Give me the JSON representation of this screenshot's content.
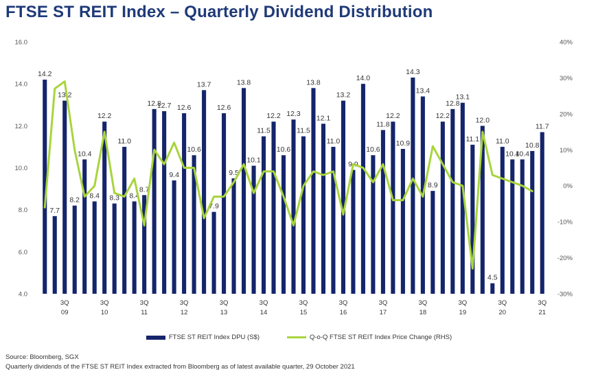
{
  "chart_data": {
    "type": "bar+line",
    "title": "FTSE ST REIT Index – Quarterly Dividend Distribution",
    "y_left": {
      "range": [
        4.0,
        16.0
      ],
      "ticks": [
        "4.0",
        "6.0",
        "8.0",
        "10.0",
        "12.0",
        "14.0",
        "16.0"
      ]
    },
    "y_right": {
      "range": [
        -30,
        40
      ],
      "ticks": [
        "-30%",
        "-20%",
        "-10%",
        "0%",
        "10%",
        "20%",
        "30%",
        "40%"
      ]
    },
    "x_labels": [
      {
        "index": 2,
        "line1": "3Q",
        "line2": "09"
      },
      {
        "index": 6,
        "line1": "3Q",
        "line2": "10"
      },
      {
        "index": 10,
        "line1": "3Q",
        "line2": "11"
      },
      {
        "index": 14,
        "line1": "3Q",
        "line2": "12"
      },
      {
        "index": 18,
        "line1": "3Q",
        "line2": "13"
      },
      {
        "index": 22,
        "line1": "3Q",
        "line2": "14"
      },
      {
        "index": 26,
        "line1": "3Q",
        "line2": "15"
      },
      {
        "index": 30,
        "line1": "3Q",
        "line2": "16"
      },
      {
        "index": 34,
        "line1": "3Q",
        "line2": "17"
      },
      {
        "index": 38,
        "line1": "3Q",
        "line2": "18"
      },
      {
        "index": 42,
        "line1": "3Q",
        "line2": "19"
      },
      {
        "index": 46,
        "line1": "3Q",
        "line2": "20"
      },
      {
        "index": 50,
        "line1": "3Q",
        "line2": "21"
      }
    ],
    "series": [
      {
        "name": "FTSE ST REIT Index DPU (S$)",
        "kind": "bar",
        "color": "#15256b",
        "values": [
          14.2,
          7.7,
          13.2,
          8.2,
          10.4,
          8.4,
          12.2,
          8.3,
          11.0,
          8.4,
          8.7,
          12.8,
          12.7,
          9.4,
          12.6,
          10.6,
          13.7,
          7.9,
          12.6,
          9.5,
          13.8,
          10.1,
          11.5,
          12.2,
          10.6,
          12.3,
          11.5,
          13.8,
          12.1,
          11.0,
          13.2,
          9.9,
          14.0,
          10.6,
          11.8,
          12.2,
          10.9,
          14.3,
          13.4,
          8.9,
          12.2,
          12.8,
          13.1,
          11.1,
          12.0,
          4.5,
          11.0,
          10.4,
          10.4,
          10.8,
          11.7
        ],
        "labels": [
          "14.2",
          "7.7",
          "13.2",
          "8.2",
          "10.4",
          "8.4",
          "12.2",
          "8.3",
          "11.0",
          "8.4",
          "8.7",
          "12.8",
          "12.7",
          "9.4",
          "12.6",
          "10.6",
          "13.7",
          "7.9",
          "12.6",
          "9.5",
          "13.8",
          "10.1",
          "11.5",
          "12.2",
          "10.6",
          "12.3",
          "11.5",
          "13.8",
          "12.1",
          "11.0",
          "13.2",
          "9.9",
          "14.0",
          "10.6",
          "11.8",
          "12.2",
          "10.9",
          "14.3",
          "13.4",
          "8.9",
          "12.2",
          "12.8",
          "13.1",
          "11.1",
          "12.0",
          "4.5",
          "11.0",
          "10.4",
          "10.4",
          "10.8",
          "11.7"
        ]
      },
      {
        "name": "Q-o-Q FTSE ST REIT Index Price Change (RHS)",
        "kind": "line",
        "color": "#a8d43c",
        "values_pct": [
          -6,
          27,
          29,
          10,
          -3,
          0,
          15,
          -2,
          -3,
          2,
          -11,
          10,
          6,
          12,
          5,
          5,
          -9,
          -3,
          -3,
          1,
          6,
          -2,
          4,
          4,
          -3,
          -11,
          0,
          4,
          3,
          4,
          -8,
          6,
          5,
          1,
          6,
          -4,
          -4,
          2,
          -3,
          11,
          6,
          1,
          0,
          -23,
          15,
          3,
          2,
          1,
          0,
          -1.5
        ]
      }
    ]
  },
  "legend": {
    "bar_label": "FTSE ST REIT Index DPU (S$)",
    "line_label": "Q-o-Q FTSE ST REIT Index Price Change (RHS)"
  },
  "footer": {
    "source": "Source: Bloomberg, SGX",
    "note": "Quarterly dividends of the FTSE ST REIT Index extracted from Bloomberg as of latest available quarter, 29 October 2021"
  },
  "colors": {
    "title": "#1f3a78",
    "bar": "#15256b",
    "line": "#a8d43c"
  }
}
